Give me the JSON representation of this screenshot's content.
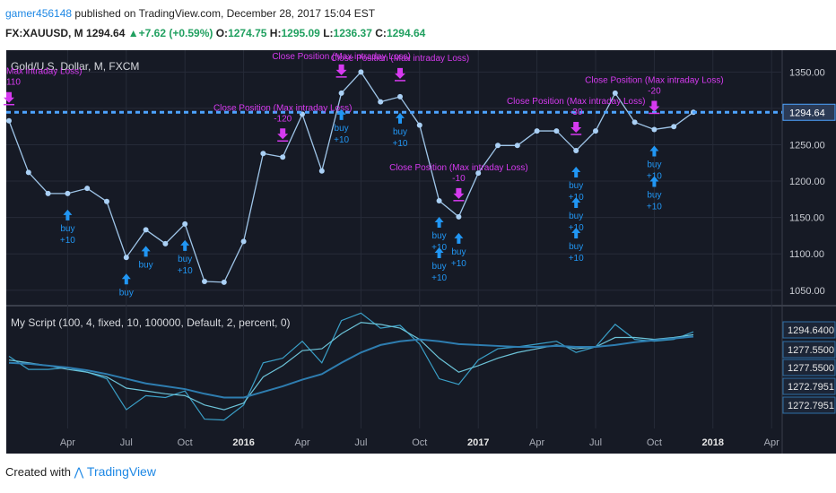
{
  "header": {
    "user": "gamer456148",
    "published": "published on TradingView.com, December 28, 2017 15:04 EST",
    "symbol": "FX:XAUUSD, M",
    "last": "1294.64",
    "change": "+7.62 (+0.59%)",
    "o_label": "O:",
    "o_value": "1274.75",
    "h_label": "H:",
    "h_value": "1295.09",
    "l_label": "L:",
    "l_value": "1236.37",
    "c_label": "C:",
    "c_value": "1294.64"
  },
  "footer": {
    "created_with": "Created with",
    "brand": "TradingView"
  },
  "colors": {
    "background": "#161a25",
    "price_line": "#9fc5e8",
    "dot": "#aad0f5",
    "buy": "#2196f3",
    "close": "#d63af0",
    "last_price": "#4da3ff",
    "osc1": "#3a9fc7",
    "osc2": "#6cc3d8",
    "osc3": "#2e7db0"
  },
  "chart_data": [
    {
      "type": "line",
      "title": "Gold/U.S. Dollar, M, FXCM",
      "x": [
        "2015-01",
        "2015-02",
        "2015-03",
        "2015-04",
        "2015-05",
        "2015-06",
        "2015-07",
        "2015-08",
        "2015-09",
        "2015-10",
        "2015-11",
        "2015-12",
        "2016-01",
        "2016-02",
        "2016-03",
        "2016-04",
        "2016-05",
        "2016-06",
        "2016-07",
        "2016-08",
        "2016-09",
        "2016-10",
        "2016-11",
        "2016-12",
        "2017-01",
        "2017-02",
        "2017-03",
        "2017-04",
        "2017-05",
        "2017-06",
        "2017-07",
        "2017-08",
        "2017-09",
        "2017-10",
        "2017-11",
        "2017-12"
      ],
      "series": [
        {
          "values": [
            1283,
            1212,
            1183,
            1183,
            1190,
            1172,
            1095,
            1133,
            1114,
            1141,
            1062,
            1061,
            1117,
            1238,
            1233,
            1292,
            1214,
            1321,
            1350,
            1309,
            1316,
            1277,
            1173,
            1151,
            1211,
            1249,
            1249,
            1269,
            1269,
            1242,
            1269,
            1321,
            1281,
            1271,
            1275,
            1294.64
          ]
        }
      ],
      "x_ticks": [
        "Apr",
        "Jul",
        "Oct",
        "2016",
        "Apr",
        "Jul",
        "Oct",
        "2017",
        "Apr",
        "Jul",
        "Oct",
        "2018",
        "Apr"
      ],
      "y_ticks": [
        "1350.00",
        "1300.00",
        "1250.00",
        "1200.00",
        "1150.00",
        "1100.00",
        "1050.00"
      ],
      "ylim": [
        1030,
        1380
      ],
      "last_price_label": "1294.64",
      "annotations": [
        {
          "x": "2015-01",
          "text": "110"
        },
        {
          "x": "2015-01",
          "text": "Max intraday Loss)"
        },
        {
          "x": "2016-03",
          "text": "-120"
        },
        {
          "x": "2016-03",
          "text": "Close Position (Max intraday Loss)"
        },
        {
          "x": "2016-06",
          "text": "Close Position (Max intraday Loss)"
        },
        {
          "x": "2016-09",
          "text": "Close Position (Max intraday Loss)"
        },
        {
          "x": "2016-12",
          "text": "-10"
        },
        {
          "x": "2016-12",
          "text": "Close Position (Max intraday Loss)"
        },
        {
          "x": "2017-06",
          "text": "-30"
        },
        {
          "x": "2017-06",
          "text": "Close Position (Max intraday Loss)"
        },
        {
          "x": "2017-10",
          "text": "-20"
        },
        {
          "x": "2017-10",
          "text": "Close Position (Max intraday Loss)"
        }
      ],
      "buy_signals": [
        {
          "x": "2015-04",
          "text": [
            "buy",
            "+10"
          ]
        },
        {
          "x": "2015-07",
          "text": [
            "buy"
          ]
        },
        {
          "x": "2015-08",
          "text": [
            "buy"
          ]
        },
        {
          "x": "2015-10",
          "text": [
            "buy",
            "+10"
          ]
        },
        {
          "x": "2016-06",
          "text": [
            "buy",
            "+10"
          ]
        },
        {
          "x": "2016-09",
          "text": [
            "buy",
            "+10"
          ]
        },
        {
          "x": "2016-11",
          "text": [
            "buy",
            "+10"
          ]
        },
        {
          "x": "2016-11",
          "text": [
            "buy",
            "+10"
          ]
        },
        {
          "x": "2016-12",
          "text": [
            "buy",
            "+10"
          ]
        },
        {
          "x": "2017-06",
          "text": [
            "buy",
            "+10"
          ]
        },
        {
          "x": "2017-06",
          "text": [
            "buy",
            "+10"
          ]
        },
        {
          "x": "2017-06",
          "text": [
            "buy",
            "+10"
          ]
        },
        {
          "x": "2017-10",
          "text": [
            "buy",
            "+10"
          ]
        },
        {
          "x": "2017-10",
          "text": [
            "buy",
            "+10"
          ]
        }
      ]
    },
    {
      "type": "line",
      "title": "My Script (100, 4, fixed, 10, 100000, Default, 2, percent, 0)",
      "x": [
        "2015-01",
        "2015-02",
        "2015-03",
        "2015-04",
        "2015-05",
        "2015-06",
        "2015-07",
        "2015-08",
        "2015-09",
        "2015-10",
        "2015-11",
        "2015-12",
        "2016-01",
        "2016-02",
        "2016-03",
        "2016-04",
        "2016-05",
        "2016-06",
        "2016-07",
        "2016-08",
        "2016-09",
        "2016-10",
        "2016-11",
        "2016-12",
        "2017-01",
        "2017-02",
        "2017-03",
        "2017-04",
        "2017-05",
        "2017-06",
        "2017-07",
        "2017-08",
        "2017-09",
        "2017-10",
        "2017-11",
        "2017-12"
      ],
      "series": [
        {
          "values": [
            0.62,
            0.48,
            0.48,
            0.5,
            0.45,
            0.38,
            0.05,
            0.2,
            0.18,
            0.25,
            -0.05,
            -0.06,
            0.1,
            0.55,
            0.6,
            0.78,
            0.55,
            1.0,
            1.08,
            0.92,
            0.95,
            0.75,
            0.38,
            0.32,
            0.58,
            0.7,
            0.72,
            0.75,
            0.78,
            0.66,
            0.72,
            0.96,
            0.8,
            0.78,
            0.8,
            0.88
          ]
        },
        {
          "values": [
            0.58,
            0.55,
            0.52,
            0.48,
            0.45,
            0.4,
            0.28,
            0.25,
            0.22,
            0.2,
            0.1,
            0.05,
            0.12,
            0.4,
            0.52,
            0.68,
            0.7,
            0.86,
            0.98,
            0.96,
            0.92,
            0.8,
            0.6,
            0.45,
            0.52,
            0.6,
            0.66,
            0.7,
            0.74,
            0.7,
            0.72,
            0.82,
            0.82,
            0.8,
            0.82,
            0.85
          ]
        },
        {
          "values": [
            0.55,
            0.54,
            0.52,
            0.5,
            0.47,
            0.43,
            0.38,
            0.33,
            0.3,
            0.27,
            0.22,
            0.18,
            0.18,
            0.24,
            0.3,
            0.37,
            0.43,
            0.55,
            0.66,
            0.74,
            0.78,
            0.8,
            0.78,
            0.75,
            0.74,
            0.73,
            0.72,
            0.72,
            0.73,
            0.72,
            0.72,
            0.74,
            0.77,
            0.79,
            0.81,
            0.83
          ]
        }
      ],
      "y_ticks": [
        "1294.6400",
        "1277.5500",
        "1277.5500",
        "1272.7951",
        "1272.7951"
      ],
      "ylim": [
        -0.15,
        1.15
      ]
    }
  ]
}
